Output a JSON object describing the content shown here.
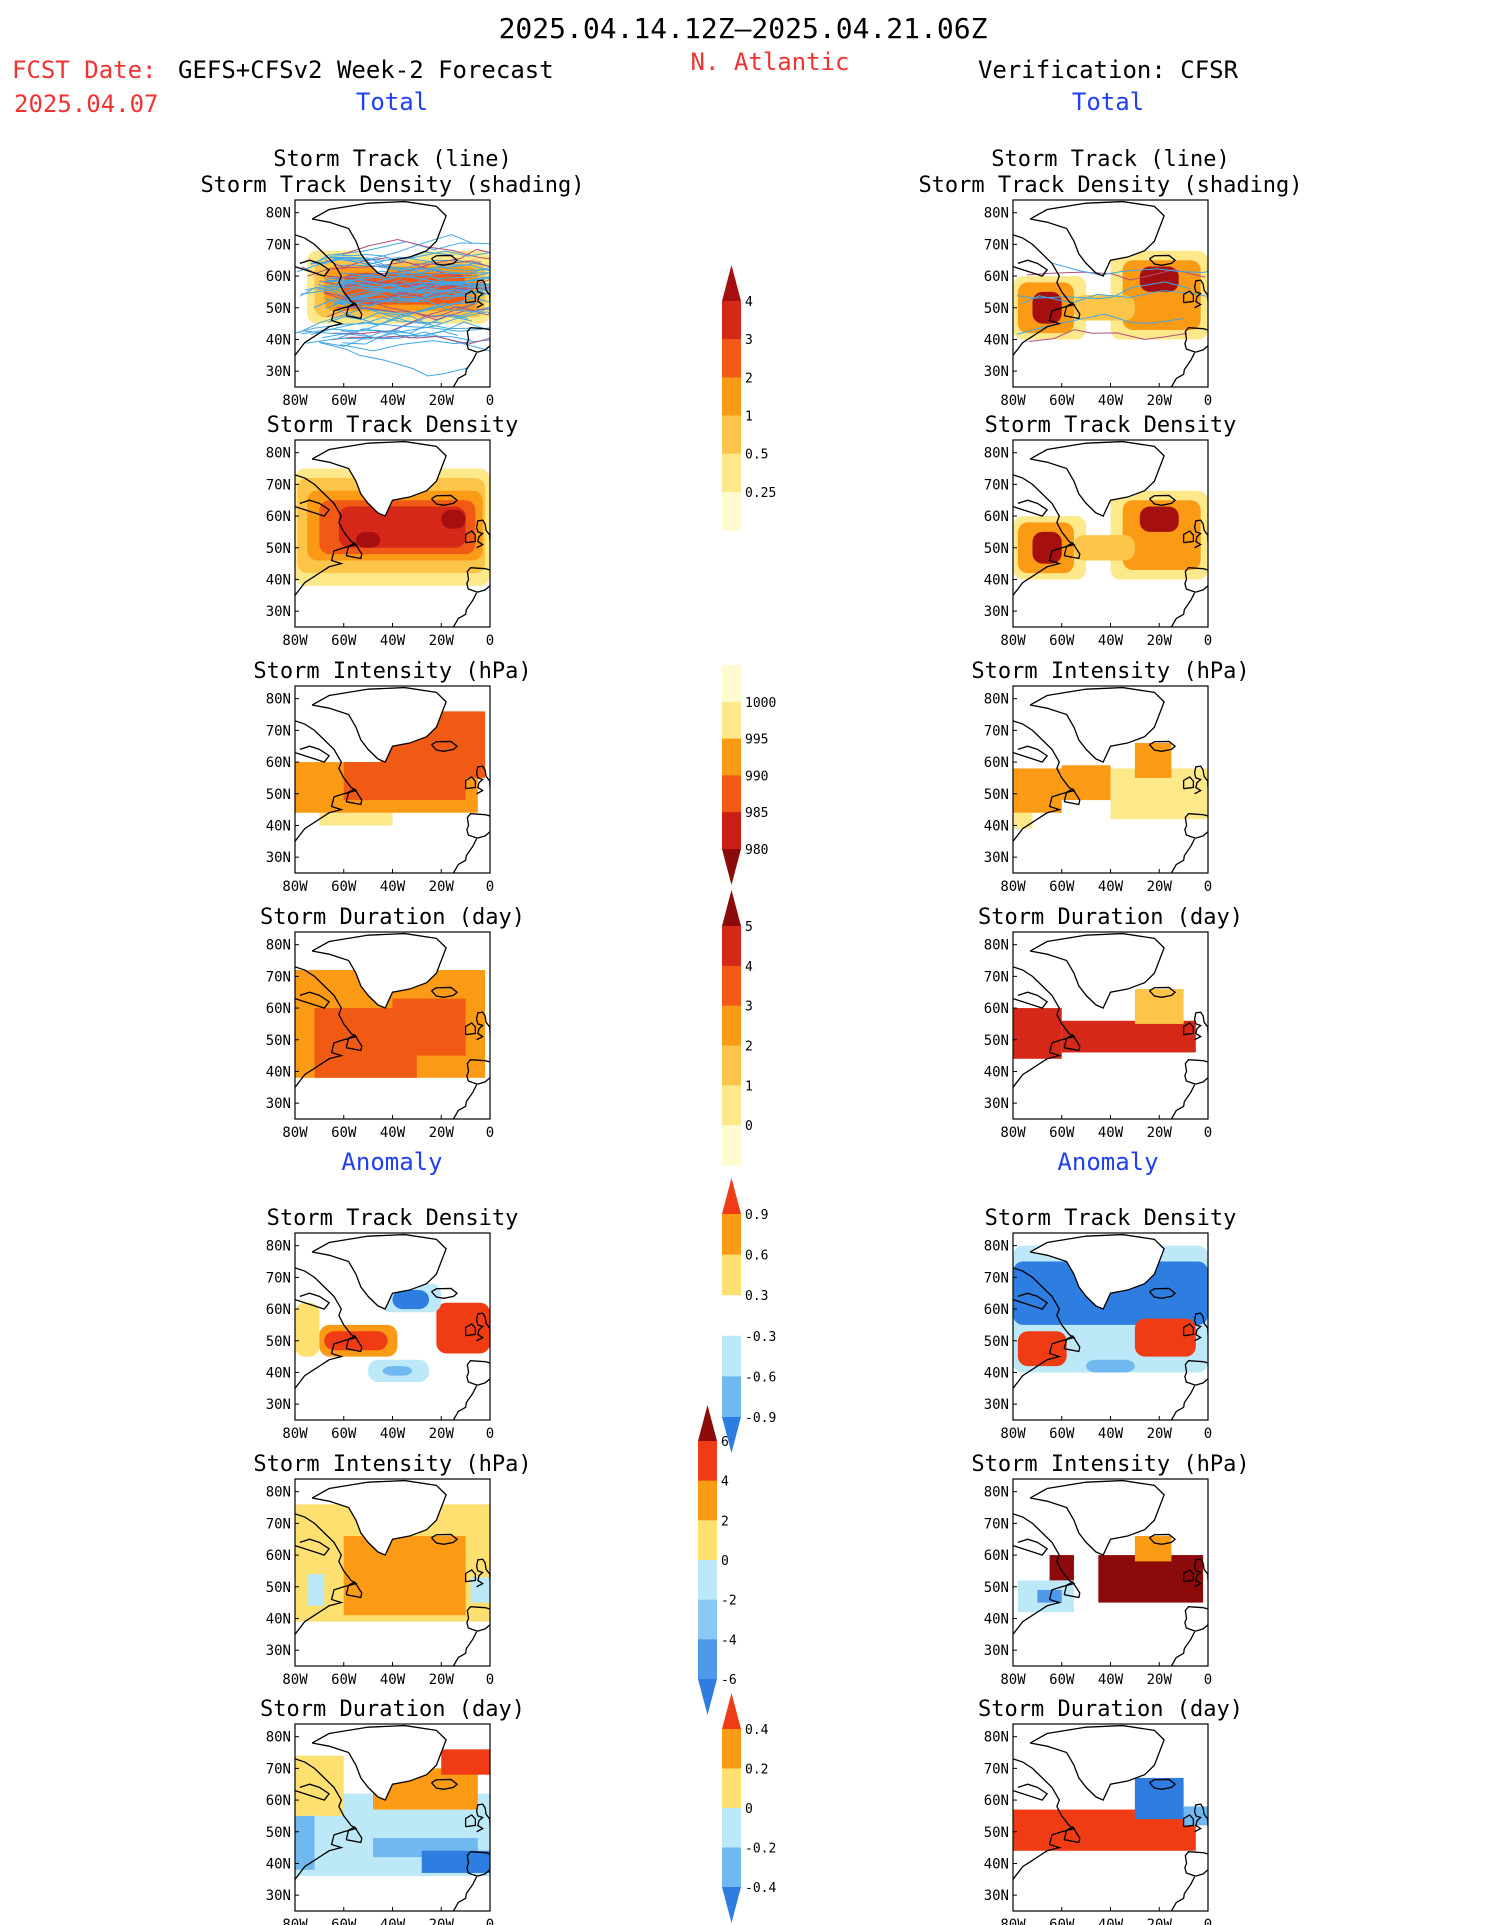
{
  "header": {
    "date_range": "2025.04.14.12Z–2025.04.21.06Z",
    "fcst_prefix": "FCST Date:",
    "fcst_model": "GEFS+CFSv2 Week-2 Forecast",
    "fcst_date": "2025.04.07",
    "region": "N. Atlantic",
    "verification": "Verification: CFSR",
    "left_total": "Total",
    "right_total": "Total",
    "left_anomaly": "Anomaly",
    "right_anomaly": "Anomaly"
  },
  "panels": {
    "track_title_1": "Storm Track (line)",
    "track_title_2": "Storm Track Density (shading)",
    "density": "Storm Track Density",
    "intensity": "Storm Intensity (hPa)",
    "duration": "Storm Duration (day)"
  },
  "axes": {
    "lat_labels": [
      "80N",
      "70N",
      "60N",
      "50N",
      "40N",
      "30N"
    ],
    "lon_labels": [
      "80W",
      "60W",
      "40W",
      "20W",
      "0"
    ],
    "lon_range": [
      -80,
      0
    ],
    "lat_range": [
      25,
      84
    ]
  },
  "colorbars": {
    "density_total": {
      "labels": [
        "4",
        "3",
        "2",
        "1",
        "0.5",
        "0.25"
      ],
      "colors": [
        "#a50f0f",
        "#d62818",
        "#f05a14",
        "#fb9a14",
        "#fdc44a",
        "#fde88a",
        "#fffad0"
      ]
    },
    "intensity_total": {
      "labels": [
        "1000",
        "995",
        "990",
        "985",
        "980"
      ],
      "colors": [
        "#fffad0",
        "#fde88a",
        "#fb9a14",
        "#f05a14",
        "#c81e14",
        "#8c0a0a"
      ]
    },
    "duration_total": {
      "labels": [
        "5",
        "4",
        "3",
        "2",
        "1",
        "0"
      ],
      "colors": [
        "#8c0a0a",
        "#d62818",
        "#f05a14",
        "#fb9a14",
        "#fdc44a",
        "#fde88a",
        "#fffad0"
      ]
    },
    "density_anom": {
      "labels": [
        "0.9",
        "0.6",
        "0.3",
        "-0.3",
        "-0.6",
        "-0.9"
      ],
      "colors": [
        "#f03c14",
        "#fb9a14",
        "#fde070",
        "#ffffff",
        "#bde8f8",
        "#6fb8f0",
        "#2e7de0"
      ]
    },
    "intensity_anom": {
      "labels": [
        "6",
        "4",
        "2",
        "0",
        "-2",
        "-4",
        "-6"
      ],
      "colors": [
        "#8c0a0a",
        "#f03c14",
        "#fb9a14",
        "#fde070",
        "#bde8f8",
        "#8cc8f5",
        "#4f9ae8",
        "#2e7de0"
      ]
    },
    "duration_anom": {
      "labels": [
        "0.4",
        "0.2",
        "0",
        "-0.2",
        "-0.4"
      ],
      "colors": [
        "#f03c14",
        "#fb9a14",
        "#fde070",
        "#bde8f8",
        "#6fb8f0",
        "#2e7de0"
      ]
    }
  },
  "colors": {
    "header_red": "#f03232",
    "header_blue": "#2040f0",
    "track_line": "#40a8e8"
  },
  "maps": {
    "fc_track": [
      {
        "lon": [
          -75,
          0
        ],
        "lat": [
          45,
          68
        ],
        "color": "#fde88a"
      },
      {
        "lon": [
          -72,
          -2
        ],
        "lat": [
          47,
          65
        ],
        "color": "#fdc44a"
      },
      {
        "lon": [
          -68,
          -5
        ],
        "lat": [
          49,
          63
        ],
        "color": "#fb9a14"
      },
      {
        "lon": [
          -60,
          -10
        ],
        "lat": [
          51,
          61
        ],
        "color": "#f05a14"
      }
    ],
    "fc_density": [
      {
        "lon": [
          -80,
          0
        ],
        "lat": [
          38,
          75
        ],
        "color": "#fde88a"
      },
      {
        "lon": [
          -79,
          -2
        ],
        "lat": [
          42,
          72
        ],
        "color": "#fdc44a"
      },
      {
        "lon": [
          -75,
          -3
        ],
        "lat": [
          46,
          68
        ],
        "color": "#fb9a14"
      },
      {
        "lon": [
          -70,
          -6
        ],
        "lat": [
          48,
          65
        ],
        "color": "#f05a14"
      },
      {
        "lon": [
          -62,
          -10
        ],
        "lat": [
          50,
          63
        ],
        "color": "#d62818"
      },
      {
        "lon": [
          -55,
          -45
        ],
        "lat": [
          50,
          55
        ],
        "color": "#a50f0f"
      },
      {
        "lon": [
          -20,
          -10
        ],
        "lat": [
          56,
          62
        ],
        "color": "#a50f0f"
      }
    ],
    "fc_intensity": [
      {
        "lon": [
          -70,
          -40
        ],
        "lat": [
          40,
          44
        ],
        "color": "#fde88a"
      },
      {
        "lon": [
          -80,
          -5
        ],
        "lat": [
          44,
          60
        ],
        "color": "#fb9a14"
      },
      {
        "lon": [
          -45,
          -2
        ],
        "lat": [
          55,
          76
        ],
        "color": "#f05a14"
      },
      {
        "lon": [
          -60,
          -10
        ],
        "lat": [
          48,
          60
        ],
        "color": "#f05a14"
      }
    ],
    "fc_duration": [
      {
        "lon": [
          -80,
          -2
        ],
        "lat": [
          38,
          72
        ],
        "color": "#fb9a14"
      },
      {
        "lon": [
          -72,
          -30
        ],
        "lat": [
          38,
          60
        ],
        "color": "#f05a14"
      },
      {
        "lon": [
          -40,
          -10
        ],
        "lat": [
          45,
          63
        ],
        "color": "#f05a14"
      }
    ],
    "fc_density_anom": [
      {
        "lon": [
          -80,
          -70
        ],
        "lat": [
          45,
          62
        ],
        "color": "#fde070"
      },
      {
        "lon": [
          -70,
          -38
        ],
        "lat": [
          45,
          55
        ],
        "color": "#fb9a14"
      },
      {
        "lon": [
          -68,
          -42
        ],
        "lat": [
          47,
          53
        ],
        "color": "#f03c14"
      },
      {
        "lon": [
          -22,
          0
        ],
        "lat": [
          46,
          62
        ],
        "color": "#f03c14"
      },
      {
        "lon": [
          -45,
          -20
        ],
        "lat": [
          59,
          68
        ],
        "color": "#bde8f8"
      },
      {
        "lon": [
          -40,
          -25
        ],
        "lat": [
          60,
          66
        ],
        "color": "#2e7de0"
      },
      {
        "lon": [
          -50,
          -25
        ],
        "lat": [
          37,
          44
        ],
        "color": "#bde8f8"
      },
      {
        "lon": [
          -44,
          -32
        ],
        "lat": [
          39,
          42
        ],
        "color": "#6fb8f0"
      }
    ],
    "fc_intensity_anom": [
      {
        "lon": [
          -80,
          0
        ],
        "lat": [
          39,
          76
        ],
        "color": "#fde070"
      },
      {
        "lon": [
          -60,
          -10
        ],
        "lat": [
          41,
          66
        ],
        "color": "#fb9a14"
      },
      {
        "lon": [
          -75,
          -68
        ],
        "lat": [
          44,
          54
        ],
        "color": "#bde8f8"
      },
      {
        "lon": [
          -8,
          0
        ],
        "lat": [
          45,
          53
        ],
        "color": "#bde8f8"
      }
    ],
    "fc_duration_anom": [
      {
        "lon": [
          -80,
          0
        ],
        "lat": [
          36,
          62
        ],
        "color": "#bde8f8"
      },
      {
        "lon": [
          -80,
          -60
        ],
        "lat": [
          55,
          74
        ],
        "color": "#fde070"
      },
      {
        "lon": [
          -48,
          -5
        ],
        "lat": [
          57,
          70
        ],
        "color": "#fb9a14"
      },
      {
        "lon": [
          -20,
          0
        ],
        "lat": [
          68,
          76
        ],
        "color": "#f03c14"
      },
      {
        "lon": [
          -48,
          -5
        ],
        "lat": [
          42,
          48
        ],
        "color": "#6fb8f0"
      },
      {
        "lon": [
          -28,
          0
        ],
        "lat": [
          37,
          44
        ],
        "color": "#2e7de0"
      },
      {
        "lon": [
          -80,
          -72
        ],
        "lat": [
          38,
          55
        ],
        "color": "#6fb8f0"
      }
    ],
    "vf_track": [
      {
        "lon": [
          -80,
          -50
        ],
        "lat": [
          40,
          60
        ],
        "color": "#fde88a"
      },
      {
        "lon": [
          -40,
          0
        ],
        "lat": [
          40,
          68
        ],
        "color": "#fde88a"
      },
      {
        "lon": [
          -78,
          -55
        ],
        "lat": [
          42,
          58
        ],
        "color": "#fb9a14"
      },
      {
        "lon": [
          -35,
          -3
        ],
        "lat": [
          43,
          65
        ],
        "color": "#fb9a14"
      },
      {
        "lon": [
          -72,
          -60
        ],
        "lat": [
          45,
          55
        ],
        "color": "#a50f0f"
      },
      {
        "lon": [
          -28,
          -12
        ],
        "lat": [
          55,
          63
        ],
        "color": "#a50f0f"
      },
      {
        "lon": [
          -55,
          -30
        ],
        "lat": [
          46,
          54
        ],
        "color": "#fdc44a"
      }
    ],
    "vf_density": [
      {
        "lon": [
          -80,
          -50
        ],
        "lat": [
          40,
          60
        ],
        "color": "#fde88a"
      },
      {
        "lon": [
          -40,
          0
        ],
        "lat": [
          40,
          68
        ],
        "color": "#fde88a"
      },
      {
        "lon": [
          -78,
          -55
        ],
        "lat": [
          42,
          58
        ],
        "color": "#fb9a14"
      },
      {
        "lon": [
          -35,
          -3
        ],
        "lat": [
          43,
          65
        ],
        "color": "#fb9a14"
      },
      {
        "lon": [
          -72,
          -60
        ],
        "lat": [
          45,
          55
        ],
        "color": "#a50f0f"
      },
      {
        "lon": [
          -28,
          -12
        ],
        "lat": [
          55,
          63
        ],
        "color": "#a50f0f"
      },
      {
        "lon": [
          -55,
          -30
        ],
        "lat": [
          46,
          54
        ],
        "color": "#fdc44a"
      }
    ],
    "vf_intensity": [
      {
        "lon": [
          -80,
          -60
        ],
        "lat": [
          44,
          58
        ],
        "color": "#fb9a14"
      },
      {
        "lon": [
          -60,
          -40
        ],
        "lat": [
          48,
          59
        ],
        "color": "#fb9a14"
      },
      {
        "lon": [
          -40,
          0
        ],
        "lat": [
          42,
          58
        ],
        "color": "#fde88a"
      },
      {
        "lon": [
          -30,
          -15
        ],
        "lat": [
          55,
          66
        ],
        "color": "#fb9a14"
      },
      {
        "lon": [
          -80,
          -72
        ],
        "lat": [
          39,
          44
        ],
        "color": "#fde88a"
      }
    ],
    "vf_duration": [
      {
        "lon": [
          -80,
          -60
        ],
        "lat": [
          44,
          60
        ],
        "color": "#d62818"
      },
      {
        "lon": [
          -60,
          -5
        ],
        "lat": [
          46,
          56
        ],
        "color": "#d62818"
      },
      {
        "lon": [
          -30,
          -10
        ],
        "lat": [
          55,
          66
        ],
        "color": "#fdc44a"
      }
    ],
    "vf_density_anom": [
      {
        "lon": [
          -80,
          0
        ],
        "lat": [
          40,
          80
        ],
        "color": "#bde8f8"
      },
      {
        "lon": [
          -80,
          0
        ],
        "lat": [
          55,
          75
        ],
        "color": "#2e7de0"
      },
      {
        "lon": [
          -78,
          -58
        ],
        "lat": [
          42,
          53
        ],
        "color": "#f03c14"
      },
      {
        "lon": [
          -30,
          -5
        ],
        "lat": [
          45,
          57
        ],
        "color": "#f03c14"
      },
      {
        "lon": [
          -50,
          -30
        ],
        "lat": [
          40,
          44
        ],
        "color": "#6fb8f0"
      }
    ],
    "vf_intensity_anom": [
      {
        "lon": [
          -65,
          -55
        ],
        "lat": [
          52,
          60
        ],
        "color": "#8c0a0a"
      },
      {
        "lon": [
          -45,
          -2
        ],
        "lat": [
          45,
          60
        ],
        "color": "#8c0a0a"
      },
      {
        "lon": [
          -30,
          -15
        ],
        "lat": [
          58,
          66
        ],
        "color": "#fb9a14"
      },
      {
        "lon": [
          -78,
          -55
        ],
        "lat": [
          42,
          52
        ],
        "color": "#bde8f8"
      },
      {
        "lon": [
          -70,
          -60
        ],
        "lat": [
          45,
          49
        ],
        "color": "#4f9ae8"
      }
    ],
    "vf_duration_anom": [
      {
        "lon": [
          -80,
          -5
        ],
        "lat": [
          44,
          57
        ],
        "color": "#f03c14"
      },
      {
        "lon": [
          -30,
          -10
        ],
        "lat": [
          54,
          67
        ],
        "color": "#2e7de0"
      },
      {
        "lon": [
          -10,
          0
        ],
        "lat": [
          52,
          58
        ],
        "color": "#6fb8f0"
      }
    ]
  }
}
